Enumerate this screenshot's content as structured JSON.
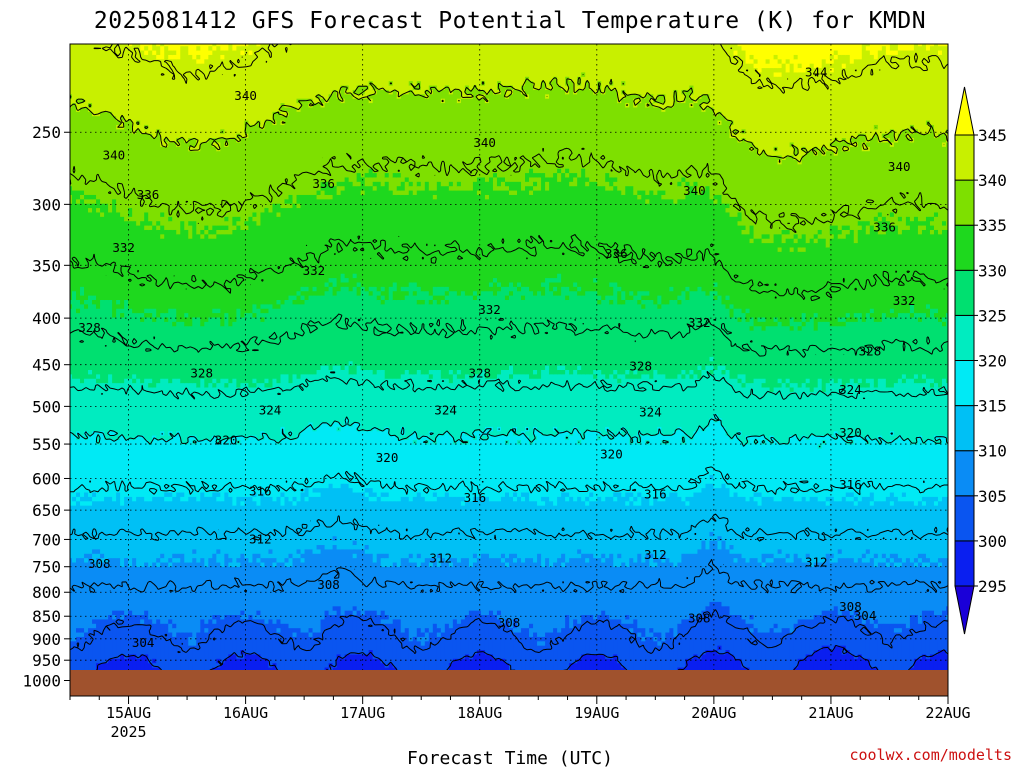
{
  "chart_data": {
    "type": "heatmap",
    "title": "2025081412 GFS Forecast Potential Temperature (K) for KMDN",
    "xlabel": "Forecast Time (UTC)",
    "ylabel": "",
    "credit": "coolwx.com/modelts",
    "y_axis": {
      "quantity": "pressure (hPa)",
      "scale": "log",
      "inverted": true,
      "range": [
        1040,
        200
      ],
      "ticks": [
        250,
        300,
        350,
        400,
        450,
        500,
        550,
        600,
        650,
        700,
        750,
        800,
        850,
        900,
        950,
        1000
      ]
    },
    "x_axis": {
      "range_hours": [
        -12,
        168
      ],
      "ticks": [
        {
          "hour": 0,
          "label": "15AUG",
          "sublabel": "2025"
        },
        {
          "hour": 24,
          "label": "16AUG",
          "sublabel": ""
        },
        {
          "hour": 48,
          "label": "17AUG",
          "sublabel": ""
        },
        {
          "hour": 72,
          "label": "18AUG",
          "sublabel": ""
        },
        {
          "hour": 96,
          "label": "19AUG",
          "sublabel": ""
        },
        {
          "hour": 120,
          "label": "20AUG",
          "sublabel": ""
        },
        {
          "hour": 144,
          "label": "21AUG",
          "sublabel": ""
        },
        {
          "hour": 168,
          "label": "22AUG",
          "sublabel": ""
        }
      ]
    },
    "grid": true,
    "colorbar": {
      "levels": [
        295,
        300,
        305,
        310,
        315,
        320,
        325,
        330,
        335,
        340,
        345
      ],
      "labels": [
        "295",
        "300",
        "305",
        "310",
        "315",
        "320",
        "325",
        "330",
        "335",
        "340",
        "345"
      ],
      "colors": [
        "#1a00d8",
        "#0a1ff0",
        "#0a55f0",
        "#0a8cf5",
        "#00c0f5",
        "#00eaf5",
        "#00ecc0",
        "#00e070",
        "#1ed81e",
        "#7ee000",
        "#c8f000",
        "#ffff00"
      ],
      "extend": "both"
    },
    "ground_color": "#a0522d",
    "contour_interval": 4,
    "contour_levels": [
      300,
      304,
      308,
      312,
      316,
      320,
      324,
      328,
      332,
      336,
      340,
      344
    ],
    "profile": {
      "pressure": [
        1000,
        975,
        950,
        925,
        900,
        850,
        800,
        750,
        700,
        650,
        600,
        550,
        500,
        450,
        400,
        350,
        300,
        250,
        200
      ],
      "theta_base": [
        298.5,
        299.5,
        300.8,
        302.5,
        303.5,
        305.5,
        307.5,
        309.5,
        311.5,
        314.0,
        316.8,
        319.5,
        322.5,
        326.5,
        329.5,
        332.5,
        335.5,
        339.5,
        344.5
      ]
    },
    "contour_labels": [
      {
        "value": "344",
        "hour": 141,
        "p": 215
      },
      {
        "value": "340",
        "hour": 24,
        "p": 228
      },
      {
        "value": "340",
        "hour": -3,
        "p": 265
      },
      {
        "value": "340",
        "hour": 73,
        "p": 257
      },
      {
        "value": "340",
        "hour": 116,
        "p": 290
      },
      {
        "value": "340",
        "hour": 158,
        "p": 273
      },
      {
        "value": "336",
        "hour": 4,
        "p": 293
      },
      {
        "value": "336",
        "hour": 40,
        "p": 285
      },
      {
        "value": "336",
        "hour": 100,
        "p": 340
      },
      {
        "value": "336",
        "hour": 155,
        "p": 318
      },
      {
        "value": "332",
        "hour": -1,
        "p": 335
      },
      {
        "value": "332",
        "hour": 38,
        "p": 355
      },
      {
        "value": "332",
        "hour": 74,
        "p": 392
      },
      {
        "value": "332",
        "hour": 117,
        "p": 405
      },
      {
        "value": "332",
        "hour": 159,
        "p": 383
      },
      {
        "value": "328",
        "hour": -8,
        "p": 410
      },
      {
        "value": "328",
        "hour": 15,
        "p": 460
      },
      {
        "value": "328",
        "hour": 72,
        "p": 460
      },
      {
        "value": "328",
        "hour": 105,
        "p": 452
      },
      {
        "value": "328",
        "hour": 152,
        "p": 435
      },
      {
        "value": "324",
        "hour": 29,
        "p": 505
      },
      {
        "value": "324",
        "hour": 65,
        "p": 505
      },
      {
        "value": "324",
        "hour": 107,
        "p": 508
      },
      {
        "value": "324",
        "hour": 148,
        "p": 480
      },
      {
        "value": "320",
        "hour": 20,
        "p": 545
      },
      {
        "value": "320",
        "hour": 53,
        "p": 570
      },
      {
        "value": "320",
        "hour": 99,
        "p": 565
      },
      {
        "value": "320",
        "hour": 148,
        "p": 535
      },
      {
        "value": "316",
        "hour": 27,
        "p": 620
      },
      {
        "value": "316",
        "hour": 71,
        "p": 630
      },
      {
        "value": "316",
        "hour": 108,
        "p": 625
      },
      {
        "value": "316",
        "hour": 148,
        "p": 610
      },
      {
        "value": "312",
        "hour": 27,
        "p": 700
      },
      {
        "value": "312",
        "hour": 64,
        "p": 735
      },
      {
        "value": "312",
        "hour": 108,
        "p": 728
      },
      {
        "value": "312",
        "hour": 141,
        "p": 742
      },
      {
        "value": "308",
        "hour": -6,
        "p": 745
      },
      {
        "value": "308",
        "hour": 41,
        "p": 785
      },
      {
        "value": "308",
        "hour": 78,
        "p": 865
      },
      {
        "value": "308",
        "hour": 117,
        "p": 855
      },
      {
        "value": "308",
        "hour": 148,
        "p": 830
      },
      {
        "value": "304",
        "hour": 3,
        "p": 910
      },
      {
        "value": "304",
        "hour": 151,
        "p": 850
      }
    ]
  }
}
